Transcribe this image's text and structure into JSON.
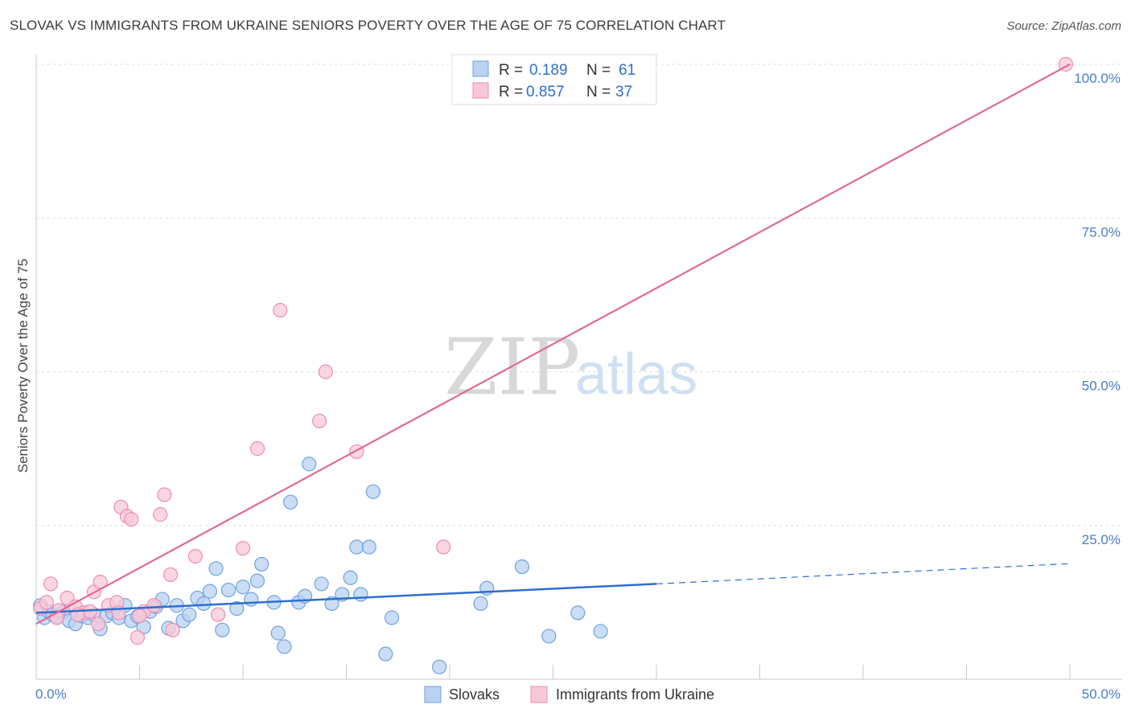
{
  "header": {
    "title": "SLOVAK VS IMMIGRANTS FROM UKRAINE SENIORS POVERTY OVER THE AGE OF 75 CORRELATION CHART",
    "source": "Source: ZipAtlas.com"
  },
  "watermark": {
    "zip": "ZIP",
    "atlas": "atlas"
  },
  "legend_top": {
    "r_label": "R =",
    "n_label": "N =",
    "rows": [
      {
        "series": "Slovaks",
        "r": "0.189",
        "n": "61"
      },
      {
        "series": "Immigrants from Ukraine",
        "r": "0.857",
        "n": "37"
      }
    ]
  },
  "chart_data": {
    "type": "scatter",
    "title": "SLOVAK VS IMMIGRANTS FROM UKRAINE SENIORS POVERTY OVER THE AGE OF 75 CORRELATION CHART",
    "xlabel": "",
    "ylabel": "Seniors Poverty Over the Age of 75",
    "xlim": [
      0,
      50
    ],
    "ylim": [
      0,
      100
    ],
    "x_tick_labels": [
      "0.0%",
      "50.0%"
    ],
    "y_ticks": [
      {
        "value": 25,
        "label": "25.0%"
      },
      {
        "value": 50,
        "label": "50.0%"
      },
      {
        "value": 75,
        "label": "75.0%"
      },
      {
        "value": 100,
        "label": "100.0%"
      }
    ],
    "grid": "horizontal dashed",
    "legend": "bottom-center",
    "colors": {
      "slovaks": "#6fa3e0",
      "slovaks_fill": "#b9d2f2",
      "slovaks_line": "#2d6fcf",
      "ukraine": "#f08cb0",
      "ukraine_fill": "#f8c8d8",
      "ukraine_line": "#e06a94",
      "value_text": "#2d6fcf"
    },
    "series": [
      {
        "name": "Slovaks",
        "trend": {
          "x0": 0,
          "y0": 10.8,
          "x1": 30,
          "y1": 15.5,
          "dashed_to_x": 50,
          "dashed_to_y": 18.8
        },
        "points": [
          [
            0.2,
            12.0
          ],
          [
            0.4,
            10.0
          ],
          [
            0.6,
            11.0
          ],
          [
            0.8,
            10.5
          ],
          [
            1.0,
            10.2
          ],
          [
            1.3,
            10.9
          ],
          [
            1.6,
            9.5
          ],
          [
            1.9,
            9.0
          ],
          [
            2.2,
            10.3
          ],
          [
            2.5,
            10.0
          ],
          [
            2.8,
            10.5
          ],
          [
            3.1,
            8.2
          ],
          [
            3.4,
            10.3
          ],
          [
            3.7,
            10.8
          ],
          [
            4.0,
            10.0
          ],
          [
            4.3,
            12.0
          ],
          [
            4.6,
            9.5
          ],
          [
            4.9,
            10.2
          ],
          [
            5.2,
            8.5
          ],
          [
            5.5,
            11.0
          ],
          [
            5.8,
            11.8
          ],
          [
            6.1,
            13.0
          ],
          [
            6.4,
            8.3
          ],
          [
            6.8,
            12.0
          ],
          [
            7.1,
            9.5
          ],
          [
            7.4,
            10.5
          ],
          [
            7.8,
            13.2
          ],
          [
            8.1,
            12.3
          ],
          [
            8.4,
            14.3
          ],
          [
            8.7,
            18.0
          ],
          [
            9.0,
            8.0
          ],
          [
            9.3,
            14.5
          ],
          [
            9.7,
            11.5
          ],
          [
            10.0,
            15.0
          ],
          [
            10.4,
            13.0
          ],
          [
            10.7,
            16.0
          ],
          [
            10.9,
            18.7
          ],
          [
            11.5,
            12.5
          ],
          [
            11.7,
            7.5
          ],
          [
            12.0,
            5.3
          ],
          [
            12.3,
            28.8
          ],
          [
            12.7,
            12.5
          ],
          [
            13.0,
            13.5
          ],
          [
            13.2,
            35.0
          ],
          [
            13.8,
            15.5
          ],
          [
            14.3,
            12.3
          ],
          [
            14.8,
            13.8
          ],
          [
            15.2,
            16.5
          ],
          [
            15.5,
            21.5
          ],
          [
            15.7,
            13.8
          ],
          [
            16.1,
            21.5
          ],
          [
            16.3,
            30.5
          ],
          [
            16.9,
            4.1
          ],
          [
            17.2,
            10.0
          ],
          [
            19.5,
            2.0
          ],
          [
            21.5,
            12.3
          ],
          [
            21.8,
            14.8
          ],
          [
            23.5,
            18.3
          ],
          [
            24.8,
            7.0
          ],
          [
            26.2,
            10.8
          ],
          [
            27.3,
            7.8
          ]
        ]
      },
      {
        "name": "Immigrants from Ukraine",
        "trend": {
          "x0": 0,
          "y0": 9.0,
          "x1": 50,
          "y1": 100.0
        },
        "points": [
          [
            0.2,
            11.5
          ],
          [
            0.7,
            15.5
          ],
          [
            1.1,
            11.2
          ],
          [
            1.5,
            13.2
          ],
          [
            1.9,
            11.8
          ],
          [
            2.3,
            10.8
          ],
          [
            2.6,
            11.0
          ],
          [
            2.8,
            14.2
          ],
          [
            3.1,
            15.8
          ],
          [
            3.5,
            12.0
          ],
          [
            3.9,
            12.5
          ],
          [
            4.1,
            28.0
          ],
          [
            4.4,
            26.5
          ],
          [
            4.6,
            26.0
          ],
          [
            4.9,
            6.8
          ],
          [
            5.2,
            11.0
          ],
          [
            5.7,
            12.0
          ],
          [
            6.0,
            26.8
          ],
          [
            6.2,
            30.0
          ],
          [
            6.5,
            17.0
          ],
          [
            6.6,
            8.0
          ],
          [
            7.7,
            20.0
          ],
          [
            8.8,
            10.5
          ],
          [
            10.0,
            21.3
          ],
          [
            10.7,
            37.5
          ],
          [
            11.8,
            60.0
          ],
          [
            13.7,
            42.0
          ],
          [
            14.0,
            50.0
          ],
          [
            15.5,
            37.0
          ],
          [
            19.7,
            21.5
          ],
          [
            49.8,
            100.0
          ],
          [
            1.0,
            10.0
          ],
          [
            2.0,
            10.5
          ],
          [
            3.0,
            9.0
          ],
          [
            4.0,
            10.8
          ],
          [
            0.5,
            12.5
          ],
          [
            5.0,
            10.3
          ]
        ]
      }
    ]
  },
  "legend_bottom": {
    "items": [
      {
        "label": "Slovaks"
      },
      {
        "label": "Immigrants from Ukraine"
      }
    ]
  }
}
